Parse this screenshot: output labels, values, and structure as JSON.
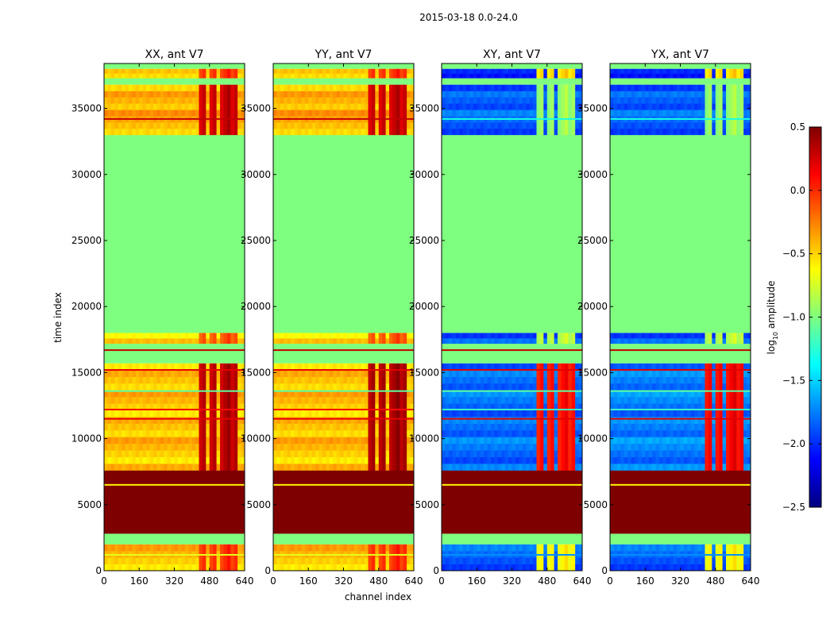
{
  "chart_data": {
    "type": "heatmap",
    "suptitle": "2015-03-18 0.0-24.0",
    "xlabel": "channel index",
    "ylabel": "time index",
    "xlim": [
      0,
      640
    ],
    "ylim": [
      0,
      38400
    ],
    "x_ticks": [
      0,
      160,
      320,
      480,
      640
    ],
    "y_ticks": [
      0,
      5000,
      10000,
      15000,
      20000,
      25000,
      30000,
      35000
    ],
    "x_tick_labels": [
      "0",
      "160",
      "320",
      "480",
      "640"
    ],
    "y_tick_labels": [
      "0",
      "5000",
      "10000",
      "15000",
      "20000",
      "25000",
      "30000",
      "35000"
    ],
    "colormap": "jet",
    "colorbar": {
      "label_main": "log",
      "label_sub": "10",
      "label_tail": " amplitude",
      "range": [
        -2.5,
        0.5
      ],
      "ticks": [
        0.5,
        0.0,
        -0.5,
        -1.0,
        -1.5,
        -2.0,
        -2.5
      ],
      "tick_labels": [
        "0.5",
        "0.0",
        "−0.5",
        "−1.0",
        "−1.5",
        "−2.0",
        "−2.5"
      ],
      "colors": [
        "#00007f",
        "#0000ff",
        "#007fff",
        "#00ffff",
        "#7fff7f",
        "#ffff00",
        "#ff7f00",
        "#ff0000",
        "#7f0000"
      ]
    },
    "flag_value": -1.0,
    "panels": [
      {
        "title": "XX, ant V7",
        "bands": [
          {
            "t0": 0,
            "t1": 2000,
            "base": -0.45,
            "hot": 0.0
          },
          {
            "t0": 2000,
            "t1": 2800,
            "flag": true
          },
          {
            "t0": 2800,
            "t1": 7600,
            "value": 0.5
          },
          {
            "t0": 7600,
            "t1": 15700,
            "base": -0.45,
            "hot": 0.35
          },
          {
            "t0": 15700,
            "t1": 17200,
            "flag": true
          },
          {
            "t0": 17200,
            "t1": 18000,
            "base": -0.55,
            "hot": -0.1
          },
          {
            "t0": 18000,
            "t1": 33000,
            "flag": true
          },
          {
            "t0": 33000,
            "t1": 36800,
            "base": -0.4,
            "hot": 0.3
          },
          {
            "t0": 36800,
            "t1": 37300,
            "flag": true
          },
          {
            "t0": 37300,
            "t1": 38000,
            "base": -0.45,
            "hot": 0.0
          },
          {
            "t0": 38000,
            "t1": 38400,
            "flag": true
          }
        ],
        "lines": [
          {
            "t": 1200,
            "value": -0.7
          },
          {
            "t": 6500,
            "value": -0.6
          },
          {
            "t": 11500,
            "value": 0.2
          },
          {
            "t": 12200,
            "value": 0.1
          },
          {
            "t": 13600,
            "value": -1.1
          },
          {
            "t": 15200,
            "value": 0.2
          },
          {
            "t": 16700,
            "value": 0.3
          },
          {
            "t": 34200,
            "value": 0.3
          }
        ]
      },
      {
        "title": "YY, ant V7",
        "bands": [
          {
            "t0": 0,
            "t1": 2000,
            "base": -0.45,
            "hot": 0.0
          },
          {
            "t0": 2000,
            "t1": 2800,
            "flag": true
          },
          {
            "t0": 2800,
            "t1": 7600,
            "value": 0.5
          },
          {
            "t0": 7600,
            "t1": 15700,
            "base": -0.45,
            "hot": 0.4
          },
          {
            "t0": 15700,
            "t1": 17200,
            "flag": true
          },
          {
            "t0": 17200,
            "t1": 18000,
            "base": -0.55,
            "hot": -0.1
          },
          {
            "t0": 18000,
            "t1": 33000,
            "flag": true
          },
          {
            "t0": 33000,
            "t1": 36800,
            "base": -0.4,
            "hot": 0.3
          },
          {
            "t0": 36800,
            "t1": 37300,
            "flag": true
          },
          {
            "t0": 37300,
            "t1": 38000,
            "base": -0.45,
            "hot": 0.0
          },
          {
            "t0": 38000,
            "t1": 38400,
            "flag": true
          }
        ],
        "lines": [
          {
            "t": 1200,
            "value": -0.7
          },
          {
            "t": 6500,
            "value": -0.6
          },
          {
            "t": 11500,
            "value": 0.2
          },
          {
            "t": 12200,
            "value": 0.1
          },
          {
            "t": 13600,
            "value": -1.1
          },
          {
            "t": 15200,
            "value": 0.2
          },
          {
            "t": 16700,
            "value": 0.3
          },
          {
            "t": 34200,
            "value": 0.3
          }
        ]
      },
      {
        "title": "XY, ant V7",
        "bands": [
          {
            "t0": 0,
            "t1": 2000,
            "base": -1.85,
            "hot": -0.6
          },
          {
            "t0": 2000,
            "t1": 2800,
            "flag": true
          },
          {
            "t0": 2800,
            "t1": 7600,
            "value": 0.5
          },
          {
            "t0": 7600,
            "t1": 15700,
            "base": -1.8,
            "hot": 0.1
          },
          {
            "t0": 15700,
            "t1": 17200,
            "flag": true
          },
          {
            "t0": 17200,
            "t1": 18000,
            "base": -1.9,
            "hot": -0.8
          },
          {
            "t0": 18000,
            "t1": 33000,
            "flag": true
          },
          {
            "t0": 33000,
            "t1": 36800,
            "base": -1.85,
            "hot": -0.9
          },
          {
            "t0": 36800,
            "t1": 37300,
            "flag": true
          },
          {
            "t0": 37300,
            "t1": 38000,
            "base": -2.0,
            "hot": -0.5
          },
          {
            "t0": 38000,
            "t1": 38400,
            "flag": true
          }
        ],
        "lines": [
          {
            "t": 1200,
            "value": -1.7
          },
          {
            "t": 6500,
            "value": -0.6
          },
          {
            "t": 11500,
            "value": 0.2
          },
          {
            "t": 12200,
            "value": -1.2
          },
          {
            "t": 13600,
            "value": -1.1
          },
          {
            "t": 15200,
            "value": 0.2
          },
          {
            "t": 16700,
            "value": 0.3
          },
          {
            "t": 34200,
            "value": -1.3
          }
        ]
      },
      {
        "title": "YX, ant V7",
        "bands": [
          {
            "t0": 0,
            "t1": 2000,
            "base": -1.85,
            "hot": -0.6
          },
          {
            "t0": 2000,
            "t1": 2800,
            "flag": true
          },
          {
            "t0": 2800,
            "t1": 7600,
            "value": 0.5
          },
          {
            "t0": 7600,
            "t1": 15700,
            "base": -1.75,
            "hot": 0.15
          },
          {
            "t0": 15700,
            "t1": 17200,
            "flag": true
          },
          {
            "t0": 17200,
            "t1": 18000,
            "base": -1.9,
            "hot": -0.8
          },
          {
            "t0": 18000,
            "t1": 33000,
            "flag": true
          },
          {
            "t0": 33000,
            "t1": 36800,
            "base": -1.85,
            "hot": -0.9
          },
          {
            "t0": 36800,
            "t1": 37300,
            "flag": true
          },
          {
            "t0": 37300,
            "t1": 38000,
            "base": -2.0,
            "hot": -0.5
          },
          {
            "t0": 38000,
            "t1": 38400,
            "flag": true
          }
        ],
        "lines": [
          {
            "t": 1200,
            "value": -1.7
          },
          {
            "t": 6500,
            "value": -0.6
          },
          {
            "t": 11500,
            "value": 0.2
          },
          {
            "t": 12200,
            "value": -1.2
          },
          {
            "t": 13600,
            "value": -1.1
          },
          {
            "t": 15200,
            "value": 0.2
          },
          {
            "t": 16700,
            "value": 0.3
          },
          {
            "t": 34200,
            "value": -1.3
          }
        ]
      }
    ],
    "hot_channels": [
      [
        420,
        460
      ],
      [
        470,
        505
      ],
      [
        515,
        545
      ],
      [
        560,
        595
      ]
    ]
  }
}
